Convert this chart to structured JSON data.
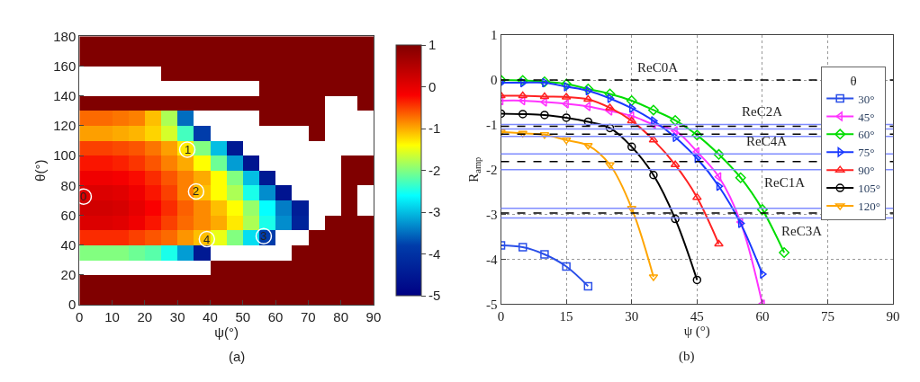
{
  "chart_data": [
    {
      "type": "heatmap",
      "xlabel": "ψ(°)",
      "ylabel": "θ(°)",
      "x": [
        2.5,
        7.5,
        12.5,
        17.5,
        22.5,
        27.5,
        32.5,
        37.5,
        42.5,
        47.5,
        52.5,
        57.5,
        62.5,
        67.5,
        72.5,
        77.5,
        82.5,
        87.5
      ],
      "y": [
        175,
        165,
        155,
        145,
        135,
        125,
        115,
        105,
        95,
        85,
        75,
        65,
        55,
        45,
        35,
        25,
        15,
        5
      ],
      "cells": [
        [
          1,
          1,
          1,
          1,
          1,
          1,
          1,
          1,
          1,
          1,
          1,
          1,
          1,
          1,
          1,
          1,
          1,
          1
        ],
        [
          1,
          1,
          1,
          1,
          1,
          1,
          1,
          1,
          1,
          1,
          1,
          1,
          1,
          1,
          1,
          1,
          1,
          1
        ],
        [
          null,
          null,
          null,
          null,
          null,
          1,
          1,
          1,
          1,
          1,
          1,
          1,
          1,
          1,
          1,
          1,
          1,
          1
        ],
        [
          null,
          null,
          null,
          null,
          null,
          null,
          null,
          null,
          null,
          null,
          null,
          1,
          1,
          1,
          1,
          1,
          1,
          1
        ],
        [
          1,
          1,
          1,
          1,
          1,
          1,
          1,
          1,
          1,
          1,
          1,
          1,
          1,
          1,
          1,
          null,
          null,
          1
        ],
        [
          -0.7,
          -0.7,
          -0.75,
          -0.8,
          -1.1,
          -1.8,
          -3.5,
          null,
          null,
          null,
          null,
          1,
          1,
          1,
          1,
          null,
          null,
          null
        ],
        [
          -0.95,
          -0.95,
          -1.0,
          -1.05,
          -1.2,
          -1.6,
          -2.3,
          -3.8,
          null,
          null,
          null,
          null,
          null,
          null,
          1,
          null,
          null,
          null
        ],
        [
          -0.5,
          -0.5,
          -0.55,
          -0.6,
          -0.75,
          -0.95,
          -1.3,
          -2.0,
          -3.0,
          -4.5,
          null,
          null,
          null,
          null,
          null,
          null,
          null,
          null
        ],
        [
          -0.3,
          -0.3,
          -0.35,
          -0.45,
          -0.6,
          -0.8,
          -1.0,
          -1.4,
          -2.1,
          -3.2,
          -4.6,
          null,
          null,
          null,
          null,
          null,
          1,
          1
        ],
        [
          -0.1,
          -0.1,
          -0.15,
          -0.25,
          -0.4,
          -0.6,
          -0.8,
          -1.0,
          -1.4,
          -2.0,
          -3.0,
          -4.5,
          null,
          null,
          null,
          null,
          1,
          1
        ],
        [
          0.1,
          0.1,
          0.05,
          -0.1,
          -0.3,
          -0.5,
          -0.8,
          -1.1,
          -1.4,
          -1.8,
          -2.5,
          -3.3,
          -4.6,
          null,
          null,
          null,
          1,
          null
        ],
        [
          0.2,
          0.2,
          0.15,
          0,
          -0.2,
          -0.4,
          -0.65,
          -0.85,
          -1.1,
          -1.4,
          -1.9,
          -2.6,
          -3.4,
          -4.4,
          null,
          null,
          1,
          null
        ],
        [
          0.1,
          0.1,
          0.05,
          -0.1,
          -0.3,
          -0.5,
          -0.7,
          -0.85,
          -1,
          -1.3,
          -1.8,
          -2.5,
          -3.3,
          -4.3,
          null,
          1,
          1,
          1
        ],
        [
          -0.4,
          -0.4,
          -0.4,
          -0.5,
          -0.6,
          -0.7,
          -0.9,
          -1.1,
          -1.5,
          -2,
          -2.8,
          -3.8,
          null,
          null,
          1,
          1,
          1,
          1
        ],
        [
          -2,
          -2,
          -2,
          -2.1,
          -2.2,
          -2.5,
          -3.2,
          -4.5,
          null,
          null,
          null,
          null,
          null,
          1,
          1,
          1,
          1,
          1
        ],
        [
          null,
          null,
          null,
          null,
          null,
          null,
          null,
          null,
          1,
          1,
          1,
          1,
          1,
          1,
          1,
          1,
          1,
          1
        ],
        [
          1,
          1,
          1,
          1,
          1,
          1,
          1,
          1,
          1,
          1,
          1,
          1,
          1,
          1,
          1,
          1,
          1,
          1
        ],
        [
          1,
          1,
          1,
          1,
          1,
          1,
          1,
          1,
          1,
          1,
          1,
          1,
          1,
          1,
          1,
          1,
          1,
          1
        ]
      ],
      "xlim": [
        0,
        90
      ],
      "xticks": [
        0,
        10,
        20,
        30,
        40,
        50,
        60,
        70,
        80,
        90
      ],
      "ylim": [
        0,
        180
      ],
      "yticks": [
        0,
        20,
        40,
        60,
        80,
        100,
        120,
        140,
        160,
        180
      ],
      "clim": [
        -5,
        1
      ],
      "cticks": [
        -5,
        -4,
        -3,
        -2,
        -1,
        0,
        1
      ],
      "series": [
        {
          "type": "scatter",
          "marker": "circle",
          "color": "#ffffff",
          "x": [
            1.3,
            33,
            35.7,
            56.4,
            39
          ],
          "values": [
            72.5,
            104,
            76,
            46,
            44
          ]
        }
      ],
      "annotations": [
        {
          "text": "0",
          "x": 1.3,
          "y": 72.5
        },
        {
          "text": "1",
          "x": 33,
          "y": 104
        },
        {
          "text": "2",
          "x": 35.7,
          "y": 76
        },
        {
          "text": "3",
          "x": 56.4,
          "y": 46
        },
        {
          "text": "4",
          "x": 39,
          "y": 44
        },
        "(a)"
      ]
    },
    {
      "type": "line",
      "xlabel": "ψ (°)",
      "ylabel": "R$_{amp}$",
      "legend_title": "θ",
      "legend": "top right",
      "grid": true,
      "line_style": "solid",
      "x": [
        0,
        5,
        10,
        15,
        20,
        25,
        30,
        35,
        40,
        45,
        50,
        55,
        60,
        65
      ],
      "xlim": [
        0,
        90
      ],
      "xticks": [
        0,
        15,
        30,
        45,
        60,
        75,
        90
      ],
      "ylim": [
        -5,
        1
      ],
      "yticks": [
        -5,
        -4,
        -3,
        -2,
        -1,
        0,
        1
      ],
      "series": [
        {
          "name": "30°",
          "color": "#2a4fe8",
          "marker": "square",
          "values": [
            -3.69,
            -3.73,
            -3.89,
            -4.16,
            -4.6,
            null,
            null,
            null,
            null,
            null,
            null,
            null,
            null,
            null
          ]
        },
        {
          "name": "45°",
          "color": "#ff33ff",
          "marker": "triangle-left",
          "values": [
            -0.46,
            -0.46,
            -0.49,
            -0.53,
            -0.59,
            -0.69,
            -0.8,
            -0.99,
            -1.13,
            -1.6,
            -2.16,
            -3.17,
            -5.0,
            null
          ]
        },
        {
          "name": "60°",
          "color": "#00dd00",
          "marker": "diamond",
          "values": [
            0,
            -0.01,
            -0.04,
            -0.09,
            -0.2,
            -0.31,
            -0.46,
            -0.67,
            -0.9,
            -1.23,
            -1.66,
            -2.18,
            -2.89,
            -3.85
          ]
        },
        {
          "name": "75°",
          "color": "#1a3aff",
          "marker": "triangle-right",
          "values": [
            -0.06,
            -0.06,
            -0.06,
            -0.15,
            -0.24,
            -0.41,
            -0.63,
            -0.91,
            -1.28,
            -1.75,
            -2.37,
            -3.2,
            -4.33,
            null
          ]
        },
        {
          "name": "90°",
          "color": "#ff2222",
          "marker": "triangle-up",
          "values": [
            -0.35,
            -0.35,
            -0.37,
            -0.38,
            -0.43,
            -0.62,
            -0.91,
            -1.34,
            -1.89,
            -2.62,
            -3.66,
            null,
            null,
            null
          ]
        },
        {
          "name": "105°",
          "color": "#000000",
          "marker": "circle",
          "values": [
            -0.75,
            -0.76,
            -0.78,
            -0.84,
            -0.93,
            -1.07,
            -1.49,
            -2.12,
            -3.1,
            -4.46,
            null,
            null,
            null,
            null
          ]
        },
        {
          "name": "120°",
          "color": "#ffa500",
          "marker": "triangle-down",
          "values": [
            -1.16,
            -1.19,
            -1.22,
            -1.34,
            -1.46,
            -1.89,
            -2.86,
            -4.39,
            null,
            null,
            null,
            null,
            null,
            null
          ]
        }
      ],
      "ref_lines": [
        {
          "axis": "y",
          "value": 0,
          "color": "#000000",
          "line_style": "dashed"
        },
        {
          "axis": "y",
          "value": -0.99,
          "color": "#7f8cff",
          "line_style": "solid"
        },
        {
          "axis": "y",
          "value": -1.03,
          "color": "#000000",
          "line_style": "dashed"
        },
        {
          "axis": "y",
          "value": -1.09,
          "color": "#7f8cff",
          "line_style": "solid"
        },
        {
          "axis": "y",
          "value": -1.21,
          "color": "#000000",
          "line_style": "dashed"
        },
        {
          "axis": "y",
          "value": -1.26,
          "color": "#7f8cff",
          "line_style": "solid"
        },
        {
          "axis": "y",
          "value": -1.65,
          "color": "#7f8cff",
          "line_style": "solid"
        },
        {
          "axis": "y",
          "value": -1.82,
          "color": "#000000",
          "line_style": "dashed"
        },
        {
          "axis": "y",
          "value": -2.0,
          "color": "#7f8cff",
          "line_style": "solid"
        },
        {
          "axis": "y",
          "value": -2.86,
          "color": "#7f8cff",
          "line_style": "solid"
        },
        {
          "axis": "y",
          "value": -2.97,
          "color": "#000000",
          "line_style": "dashed"
        },
        {
          "axis": "y",
          "value": -3.08,
          "color": "#7f8cff",
          "line_style": "solid"
        }
      ],
      "annotations": [
        {
          "text": "ReC0A",
          "x": 36,
          "y": 0
        },
        {
          "text": "ReC2A",
          "x": 60,
          "y": -0.99
        },
        {
          "text": "ReC4A",
          "x": 61,
          "y": -1.65
        },
        {
          "text": "ReC1A",
          "x": 65,
          "y": -2.0
        },
        {
          "text": "ReC3A",
          "x": 69,
          "y": -3.08
        },
        "(b)"
      ]
    }
  ]
}
